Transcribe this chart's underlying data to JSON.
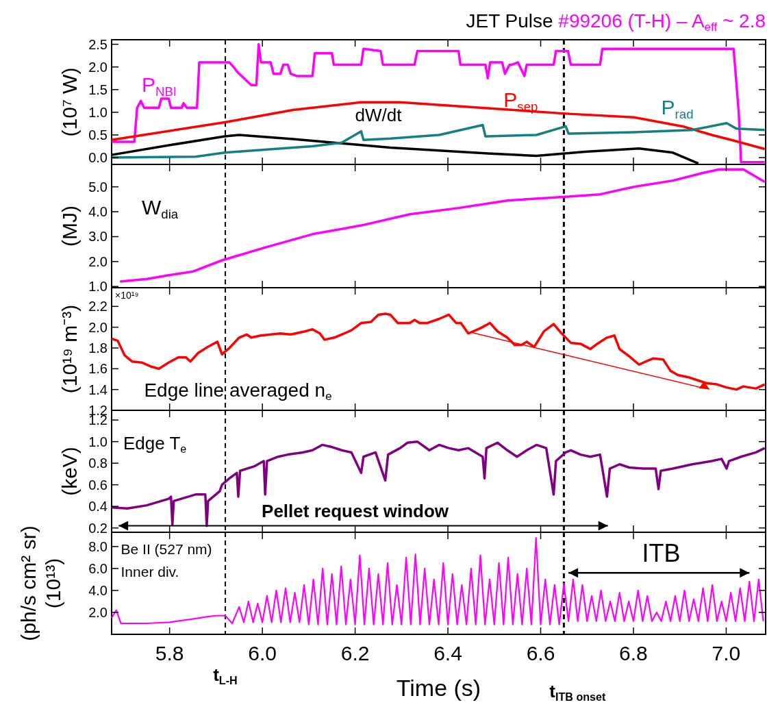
{
  "chart_data": [
    {
      "type": "line",
      "title": "JET Pulse",
      "subtitle": "#99206 (T-H) – A$_{eff}$ ~ 2.8",
      "ylabel": "(10⁷ W)",
      "xlim": [
        5.675,
        7.085
      ],
      "ylim": [
        -0.15,
        2.6
      ],
      "tick_labels": "y",
      "yticks": [
        {
          "value": 0,
          "label": "0.0"
        },
        {
          "value": 0.5,
          "label": "0.5"
        },
        {
          "value": 1,
          "label": "1.0"
        },
        {
          "value": 1.5,
          "label": "1.5"
        },
        {
          "value": 2,
          "label": "2.0"
        },
        {
          "value": 2.5,
          "label": "2.5"
        }
      ],
      "xticks": [
        {
          "value": 5.8,
          "label": null
        },
        {
          "value": 6,
          "label": null
        },
        {
          "value": 6.2,
          "label": null
        },
        {
          "value": 6.4,
          "label": null
        },
        {
          "value": 6.6,
          "label": null
        },
        {
          "value": 6.8,
          "label": null
        },
        {
          "value": 7,
          "label": null
        }
      ],
      "ref_lines": [
        {
          "axis": "x",
          "value": 5.92,
          "color": "#000000",
          "line_style": "dashed"
        },
        {
          "axis": "x",
          "value": 6.65,
          "color": "#000000",
          "line_style": "dashed"
        }
      ],
      "series": [
        {
          "name": "P$_{NBI}$",
          "color": "#ff00ff",
          "x": [
            5.675,
            5.724,
            5.73,
            5.738,
            5.745,
            5.777,
            5.782,
            5.798,
            5.803,
            5.826,
            5.83,
            5.837,
            5.859,
            5.864,
            5.929,
            5.938,
            5.945,
            5.976,
            5.987,
            5.992,
            5.997,
            6.018,
            6.024,
            6.039,
            6.045,
            6.055,
            6.061,
            6.074,
            6.108,
            6.113,
            6.15,
            6.154,
            6.213,
            6.218,
            6.255,
            6.26,
            6.328,
            6.334,
            6.423,
            6.427,
            6.481,
            6.486,
            6.491,
            6.502,
            6.517,
            6.523,
            6.533,
            6.538,
            6.551,
            6.565,
            6.57,
            6.628,
            6.633,
            6.659,
            6.665,
            6.728,
            6.733,
            7.016,
            7.027,
            7.032,
            7.083
          ],
          "values": [
            0.35,
            0.35,
            1.1,
            1.25,
            1.1,
            1.1,
            1.3,
            1.3,
            1.1,
            1.1,
            1.2,
            1.1,
            1.1,
            2.1,
            2.1,
            2.0,
            1.9,
            1.6,
            1.6,
            2.5,
            2.1,
            2.1,
            1.85,
            1.85,
            2.05,
            2.05,
            1.85,
            1.8,
            1.8,
            2.3,
            2.3,
            2.05,
            2.05,
            2.4,
            2.35,
            2.05,
            2.05,
            2.35,
            2.35,
            2.05,
            2.05,
            1.75,
            2.1,
            2.1,
            2.1,
            1.85,
            2.05,
            2.05,
            2.1,
            1.8,
            2.05,
            2.05,
            2.35,
            2.35,
            2.05,
            2.05,
            2.4,
            2.4,
            1.0,
            -0.1,
            -0.1
          ]
        },
        {
          "name": "P$_{sep}$",
          "color": "#ff0000",
          "x": [
            5.675,
            5.919,
            6.066,
            6.213,
            6.297,
            6.486,
            6.654,
            6.801,
            6.906,
            6.969,
            7.011,
            7.083
          ],
          "values": [
            0.39,
            0.78,
            1.05,
            1.22,
            1.22,
            1.09,
            0.97,
            0.89,
            0.69,
            0.5,
            0.39,
            0.19
          ]
        },
        {
          "name": "dW/dt",
          "color": "#000000",
          "x": [
            5.675,
            5.803,
            5.919,
            5.95,
            6.066,
            6.276,
            6.486,
            6.591,
            6.696,
            6.812,
            6.885,
            6.94
          ],
          "values": [
            0.06,
            0.28,
            0.47,
            0.5,
            0.41,
            0.22,
            0.09,
            0.04,
            0.13,
            0.2,
            0.11,
            -0.13
          ]
        },
        {
          "name": "P$_{rad}$",
          "color": "#148080",
          "x": [
            5.675,
            5.856,
            5.919,
            6.066,
            6.108,
            6.171,
            6.213,
            6.218,
            6.276,
            6.381,
            6.475,
            6.481,
            6.486,
            6.591,
            6.654,
            6.66,
            6.665,
            6.801,
            6.927,
            7.001,
            7.022,
            7.083
          ],
          "values": [
            0.0,
            0.02,
            0.11,
            0.22,
            0.25,
            0.33,
            0.58,
            0.39,
            0.42,
            0.5,
            0.72,
            0.47,
            0.47,
            0.5,
            0.69,
            0.53,
            0.53,
            0.56,
            0.61,
            0.76,
            0.64,
            0.61
          ]
        }
      ]
    },
    {
      "type": "line",
      "ylabel": "(MJ)",
      "xlim": [
        5.675,
        7.085
      ],
      "ylim": [
        0.95,
        5.9
      ],
      "tick_labels": "y",
      "yticks": [
        {
          "value": 1,
          "label": "1.0"
        },
        {
          "value": 2,
          "label": "2.0"
        },
        {
          "value": 3,
          "label": "3.0"
        },
        {
          "value": 4,
          "label": "4.0"
        },
        {
          "value": 5,
          "label": "5.0"
        }
      ],
      "xticks": [
        {
          "value": 5.8,
          "label": null
        },
        {
          "value": 6,
          "label": null
        },
        {
          "value": 6.2,
          "label": null
        },
        {
          "value": 6.4,
          "label": null
        },
        {
          "value": 6.6,
          "label": null
        },
        {
          "value": 6.8,
          "label": null
        },
        {
          "value": 7,
          "label": null
        }
      ],
      "ref_lines": [
        {
          "axis": "x",
          "value": 5.92,
          "color": "#000000",
          "line_style": "dashed"
        },
        {
          "axis": "x",
          "value": 6.65,
          "color": "#000000",
          "line_style": "dashed"
        }
      ],
      "series": [
        {
          "name": "W$_{dia}$",
          "color": "#ff00ff",
          "x": [
            5.693,
            5.751,
            5.798,
            5.85,
            5.913,
            6.003,
            6.108,
            6.213,
            6.318,
            6.423,
            6.528,
            6.654,
            6.728,
            6.801,
            6.885,
            6.948,
            6.985,
            7.037,
            7.083
          ],
          "values": [
            1.2,
            1.3,
            1.45,
            1.6,
            2.05,
            2.55,
            3.1,
            3.45,
            3.9,
            4.15,
            4.45,
            4.6,
            4.7,
            5.0,
            5.25,
            5.55,
            5.7,
            5.7,
            5.2
          ]
        }
      ]
    },
    {
      "type": "line",
      "ylabel": "(10¹⁹ m⁻³)",
      "xlim": [
        5.675,
        7.085
      ],
      "ylim": [
        1.2,
        2.38
      ],
      "tick_labels": "y",
      "annotations": [
        "×10¹⁹"
      ],
      "yticks": [
        {
          "value": 1.2,
          "label": "1.2"
        },
        {
          "value": 1.4,
          "label": "1.4"
        },
        {
          "value": 1.6,
          "label": "1.6"
        },
        {
          "value": 1.8,
          "label": "1.8"
        },
        {
          "value": 2,
          "label": "2.0"
        },
        {
          "value": 2.2,
          "label": "2.2"
        }
      ],
      "xticks": [
        {
          "value": 5.8,
          "label": null
        },
        {
          "value": 6,
          "label": null
        },
        {
          "value": 6.2,
          "label": null
        },
        {
          "value": 6.4,
          "label": null
        },
        {
          "value": 6.6,
          "label": null
        },
        {
          "value": 6.8,
          "label": null
        },
        {
          "value": 7,
          "label": null
        }
      ],
      "ref_lines": [
        {
          "axis": "x",
          "value": 5.92,
          "color": "#000000",
          "line_style": "dashed"
        },
        {
          "axis": "x",
          "value": 6.65,
          "color": "#000000",
          "line_style": "dashed"
        }
      ],
      "series": [
        {
          "name": "Edge line averaged n$_{e}$",
          "color": "#ff0000",
          "x": [
            5.675,
            5.688,
            5.703,
            5.719,
            5.74,
            5.761,
            5.777,
            5.798,
            5.819,
            5.835,
            5.845,
            5.861,
            5.882,
            5.903,
            5.913,
            5.929,
            5.95,
            5.966,
            5.976,
            5.997,
            6.018,
            6.039,
            6.061,
            6.092,
            6.108,
            6.124,
            6.134,
            6.155,
            6.171,
            6.192,
            6.213,
            6.234,
            6.25,
            6.265,
            6.276,
            6.292,
            6.318,
            6.328,
            6.339,
            6.355,
            6.381,
            6.402,
            6.418,
            6.428,
            6.444,
            6.47,
            6.491,
            6.507,
            6.528,
            6.544,
            6.559,
            6.57,
            6.586,
            6.607,
            6.628,
            6.643,
            6.665,
            6.686,
            6.707,
            6.722,
            6.743,
            6.759,
            6.77,
            6.791,
            6.812,
            6.827,
            6.843,
            6.864,
            6.88,
            6.896,
            6.917,
            6.938,
            6.959,
            6.98,
            7.001,
            7.022,
            7.037,
            7.064,
            7.083
          ],
          "values": [
            1.89,
            1.87,
            1.73,
            1.67,
            1.66,
            1.62,
            1.6,
            1.66,
            1.71,
            1.71,
            1.67,
            1.75,
            1.81,
            1.86,
            1.74,
            1.8,
            1.9,
            1.93,
            1.9,
            1.92,
            1.93,
            1.94,
            1.93,
            1.96,
            1.98,
            1.94,
            1.88,
            1.9,
            1.93,
            1.97,
            2.04,
            2.05,
            2.12,
            2.13,
            2.12,
            2.04,
            2.04,
            2.07,
            2.04,
            2.04,
            2.08,
            2.12,
            2.04,
            2.04,
            1.94,
            1.99,
            2.04,
            1.96,
            1.9,
            1.83,
            1.83,
            1.86,
            1.81,
            1.96,
            2.03,
            1.95,
            1.85,
            1.84,
            1.79,
            1.84,
            1.9,
            1.92,
            1.79,
            1.72,
            1.64,
            1.67,
            1.7,
            1.69,
            1.58,
            1.54,
            1.52,
            1.49,
            1.46,
            1.45,
            1.42,
            1.4,
            1.43,
            1.41,
            1.45
          ]
        }
      ]
    },
    {
      "type": "line",
      "ylabel": "(keV)",
      "xlim": [
        5.675,
        7.085
      ],
      "ylim": [
        0.16,
        1.29
      ],
      "tick_labels": "y",
      "annotations": [
        "Pellet request window"
      ],
      "yticks": [
        {
          "value": 0.2,
          "label": "0.2"
        },
        {
          "value": 0.4,
          "label": "0.4"
        },
        {
          "value": 0.6,
          "label": "0.6"
        },
        {
          "value": 0.8,
          "label": "0.8"
        },
        {
          "value": 1,
          "label": "1.0"
        },
        {
          "value": 1.2,
          "label": "1.2"
        }
      ],
      "xticks": [
        {
          "value": 5.8,
          "label": null
        },
        {
          "value": 6,
          "label": null
        },
        {
          "value": 6.2,
          "label": null
        },
        {
          "value": 6.4,
          "label": null
        },
        {
          "value": 6.6,
          "label": null
        },
        {
          "value": 6.8,
          "label": null
        },
        {
          "value": 7,
          "label": null
        }
      ],
      "ref_lines": [
        {
          "axis": "x",
          "value": 5.92,
          "color": "#000000",
          "line_style": "dashed"
        },
        {
          "axis": "x",
          "value": 6.65,
          "color": "#000000",
          "line_style": "dashed"
        }
      ],
      "series": [
        {
          "name": "Edge T$_{e}$",
          "color": "#800080",
          "x": [
            5.675,
            5.709,
            5.751,
            5.798,
            5.803,
            5.806,
            5.809,
            5.856,
            5.877,
            5.88,
            5.883,
            5.908,
            5.913,
            5.929,
            5.945,
            5.948,
            5.952,
            5.982,
            6.003,
            6.006,
            6.01,
            6.034,
            6.055,
            6.087,
            6.108,
            6.129,
            6.15,
            6.171,
            6.192,
            6.213,
            6.218,
            6.244,
            6.265,
            6.271,
            6.297,
            6.313,
            6.334,
            6.36,
            6.381,
            6.402,
            6.423,
            6.444,
            6.475,
            6.479,
            6.483,
            6.507,
            6.528,
            6.549,
            6.57,
            6.591,
            6.612,
            6.628,
            6.633,
            6.654,
            6.665,
            6.686,
            6.707,
            6.728,
            6.743,
            6.749,
            6.77,
            6.791,
            6.822,
            6.848,
            6.854,
            6.859,
            6.885,
            6.927,
            6.969,
            6.99,
            7.001,
            7.006,
            7.032,
            7.064,
            7.083
          ],
          "values": [
            0.39,
            0.38,
            0.41,
            0.47,
            0.49,
            0.23,
            0.45,
            0.51,
            0.51,
            0.22,
            0.45,
            0.54,
            0.6,
            0.66,
            0.71,
            0.49,
            0.73,
            0.77,
            0.82,
            0.51,
            0.82,
            0.86,
            0.88,
            0.9,
            0.92,
            0.97,
            0.95,
            0.92,
            0.9,
            0.71,
            0.86,
            0.9,
            0.64,
            0.88,
            0.94,
            0.99,
            1.0,
            0.92,
            0.97,
            0.94,
            0.92,
            0.94,
            0.86,
            0.66,
            0.94,
            0.99,
            0.92,
            0.86,
            0.92,
            0.97,
            0.94,
            0.51,
            0.82,
            0.9,
            0.92,
            0.88,
            0.86,
            0.88,
            0.49,
            0.75,
            0.79,
            0.76,
            0.75,
            0.75,
            0.56,
            0.73,
            0.75,
            0.79,
            0.82,
            0.84,
            0.75,
            0.82,
            0.86,
            0.9,
            0.94
          ]
        }
      ]
    },
    {
      "type": "line",
      "ylabel": "(ph/s cm² sr)\n(10¹³)",
      "xlabel": "Time (s)",
      "xlim": [
        5.675,
        7.085
      ],
      "ylim": [
        0,
        9.3
      ],
      "annotations": [
        "ITB",
        "Be II (527 nm)\nInner div."
      ],
      "yticks": [
        {
          "value": 2,
          "label": "2.0"
        },
        {
          "value": 4,
          "label": "4.0"
        },
        {
          "value": 6,
          "label": "6.0"
        },
        {
          "value": 8,
          "label": "8.0"
        }
      ],
      "xticks": [
        {
          "value": 5.8,
          "label": "5.8"
        },
        {
          "value": 6,
          "label": "6.0"
        },
        {
          "value": 6.2,
          "label": "6.2"
        },
        {
          "value": 6.4,
          "label": "6.4"
        },
        {
          "value": 6.6,
          "label": "6.6"
        },
        {
          "value": 6.8,
          "label": "6.8"
        },
        {
          "value": 7,
          "label": "7.0"
        }
      ],
      "ref_lines": [
        {
          "axis": "x",
          "value": 5.92,
          "label": "t$_{L-H}$",
          "color": "#000000",
          "line_style": "dashed"
        },
        {
          "axis": "x",
          "value": 6.65,
          "label": "t$_{ITB onset}$",
          "color": "#000000",
          "line_style": "dashed"
        }
      ],
      "series": [
        {
          "color": "#ff00ff",
          "x": [
            5.675,
            5.685,
            5.695,
            5.75,
            5.8,
            5.85,
            5.88,
            5.9,
            5.92,
            5.935,
            5.95,
            5.96,
            5.97,
            5.98,
            5.99,
            6.0,
            6.01,
            6.02,
            6.03,
            6.04,
            6.05,
            6.06,
            6.07,
            6.08,
            6.09,
            6.1,
            6.11,
            6.12,
            6.13,
            6.14,
            6.15,
            6.16,
            6.17,
            6.18,
            6.19,
            6.2,
            6.21,
            6.22,
            6.23,
            6.24,
            6.25,
            6.26,
            6.27,
            6.28,
            6.29,
            6.3,
            6.31,
            6.32,
            6.33,
            6.34,
            6.35,
            6.36,
            6.37,
            6.38,
            6.39,
            6.4,
            6.41,
            6.42,
            6.43,
            6.44,
            6.45,
            6.46,
            6.47,
            6.48,
            6.49,
            6.5,
            6.51,
            6.52,
            6.53,
            6.54,
            6.55,
            6.56,
            6.57,
            6.58,
            6.59,
            6.6,
            6.61,
            6.62,
            6.63,
            6.64,
            6.65,
            6.66,
            6.67,
            6.68,
            6.69,
            6.7,
            6.71,
            6.72,
            6.73,
            6.74,
            6.75,
            6.76,
            6.77,
            6.78,
            6.79,
            6.8,
            6.81,
            6.82,
            6.83,
            6.84,
            6.85,
            6.86,
            6.87,
            6.88,
            6.89,
            6.9,
            6.91,
            6.92,
            6.93,
            6.94,
            6.95,
            6.96,
            6.97,
            6.98,
            6.99,
            7.0,
            7.01,
            7.02,
            7.03,
            7.04,
            7.05,
            7.06,
            7.07,
            7.08
          ],
          "values": [
            1.5,
            2.2,
            1.0,
            1.0,
            1.1,
            1.4,
            1.6,
            1.7,
            1.7,
            1.0,
            2.5,
            1.1,
            3.0,
            1.1,
            2.8,
            1.1,
            3.5,
            1.1,
            4.0,
            1.1,
            4.2,
            1.1,
            3.8,
            1.1,
            4.5,
            0.9,
            5.0,
            0.9,
            6.0,
            0.9,
            5.5,
            0.9,
            6.2,
            0.9,
            5.0,
            0.9,
            7.2,
            0.9,
            6.0,
            0.9,
            5.5,
            0.9,
            6.5,
            0.9,
            4.5,
            0.9,
            7.0,
            0.9,
            7.3,
            0.9,
            6.0,
            0.9,
            5.0,
            0.9,
            6.5,
            0.9,
            5.5,
            0.9,
            4.5,
            0.9,
            6.0,
            0.9,
            7.2,
            0.9,
            5.0,
            0.9,
            6.5,
            0.9,
            7.0,
            0.9,
            5.5,
            0.9,
            6.0,
            0.9,
            8.8,
            0.9,
            5.0,
            0.9,
            4.5,
            0.9,
            4.6,
            1.2,
            5.0,
            1.2,
            4.5,
            1.2,
            3.5,
            1.2,
            4.0,
            1.2,
            3.0,
            1.2,
            3.8,
            1.2,
            3.0,
            1.2,
            4.0,
            1.2,
            3.5,
            1.2,
            2.0,
            1.2,
            3.0,
            1.2,
            3.5,
            1.2,
            4.0,
            1.2,
            3.2,
            1.2,
            4.2,
            1.2,
            4.5,
            1.2,
            3.0,
            1.2,
            3.8,
            1.2,
            4.2,
            1.2,
            4.8,
            1.2,
            5.0,
            1.2
          ]
        }
      ]
    }
  ]
}
